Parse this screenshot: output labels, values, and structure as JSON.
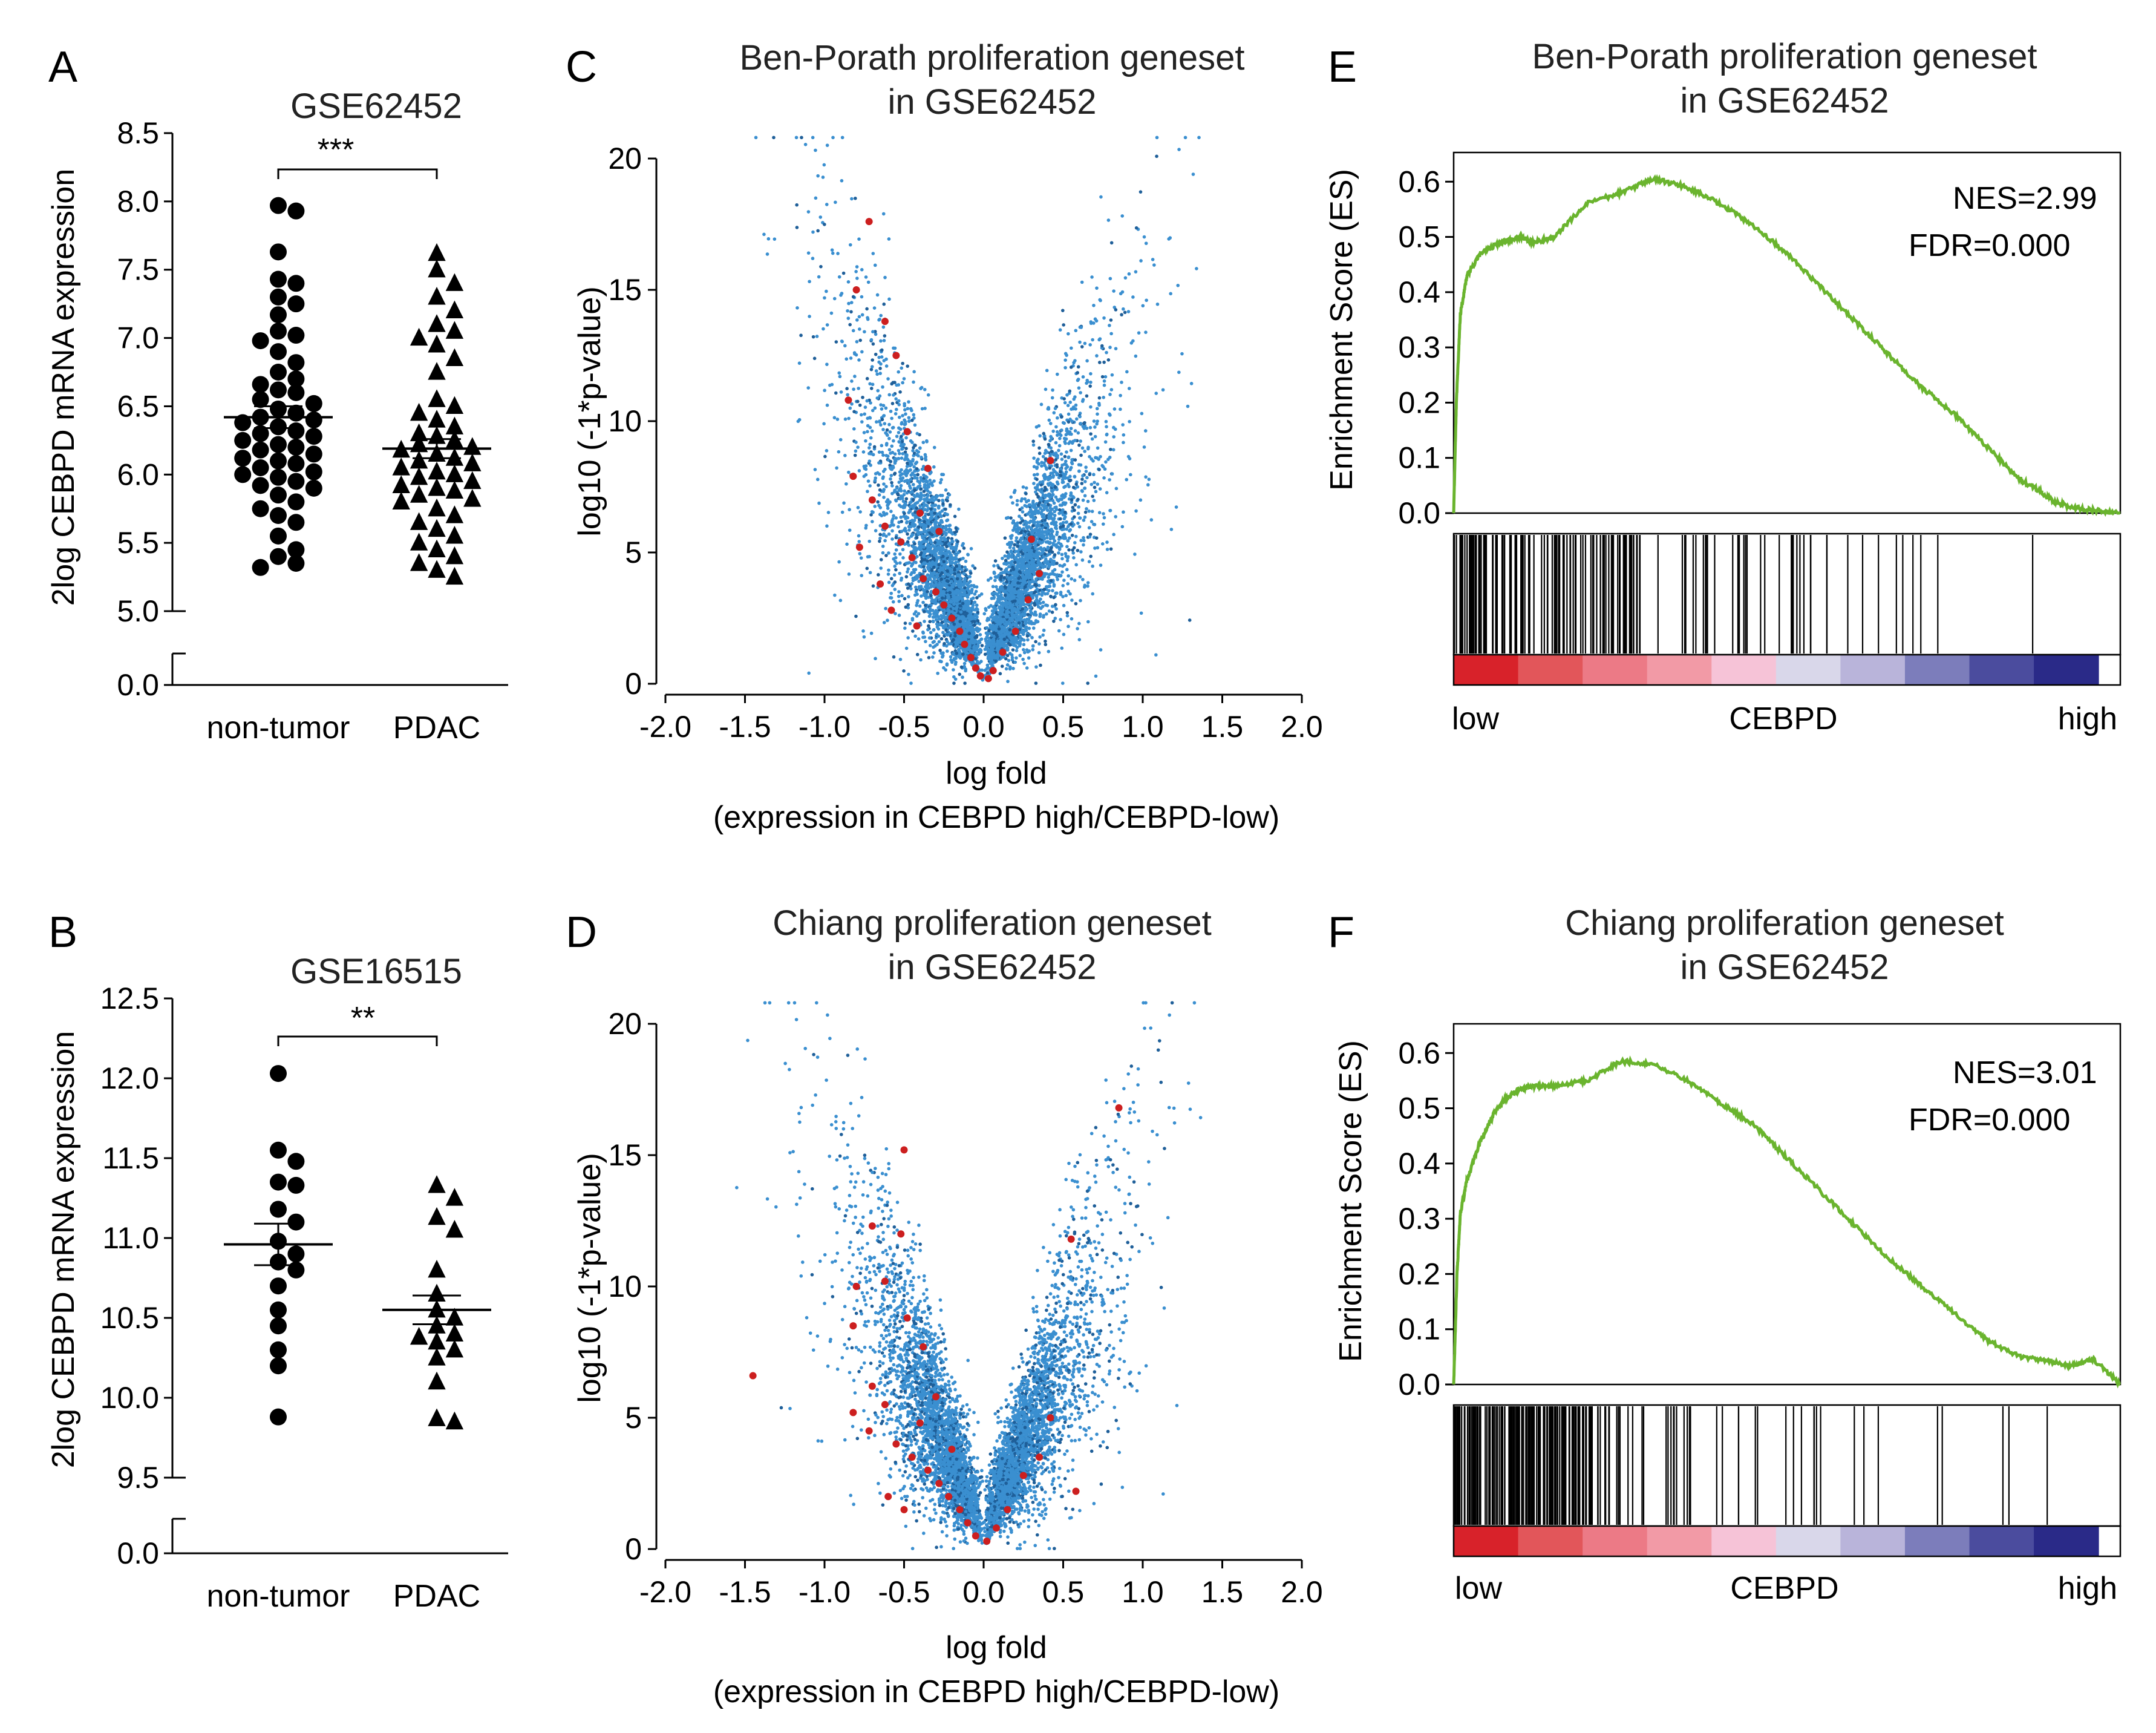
{
  "panels": {
    "A": {
      "letter": "A",
      "title": "GSE62452",
      "ylabel": "2log CEBPD mRNA expression",
      "significance": "***",
      "categories": [
        "non-tumor",
        "PDAC"
      ]
    },
    "B": {
      "letter": "B",
      "title": "GSE16515",
      "ylabel": "2log CEBPD mRNA expression",
      "significance": "**",
      "categories": [
        "non-tumor",
        "PDAC"
      ]
    },
    "C": {
      "letter": "C",
      "title_line1": "Ben-Porath proliferation geneset",
      "title_line2": "in GSE62452",
      "xlabel_line1": "log fold",
      "xlabel_line2": "(expression in CEBPD high/CEBPD-low)",
      "ylabel": "log10 (-1*p-value)"
    },
    "D": {
      "letter": "D",
      "title_line1": "Chiang proliferation geneset",
      "title_line2": "in GSE62452",
      "xlabel_line1": "log fold",
      "xlabel_line2": "(expression in CEBPD high/CEBPD-low)",
      "ylabel": "log10 (-1*p-value)"
    },
    "E": {
      "letter": "E",
      "title_line1": "Ben-Porath proliferation geneset",
      "title_line2": "in GSE62452",
      "ylabel": "Enrichment Score (ES)",
      "nes": "NES=2.99",
      "fdr": "FDR=0.000",
      "low": "low",
      "mid": "CEBPD",
      "high": "high"
    },
    "F": {
      "letter": "F",
      "title_line1": "Chiang proliferation geneset",
      "title_line2": "in GSE62452",
      "ylabel": "Enrichment Score (ES)",
      "nes": "NES=3.01",
      "fdr": "FDR=0.000",
      "low": "low",
      "mid": "CEBPD",
      "high": "high"
    }
  },
  "colors": {
    "volcano_blue": "#3a8fd0",
    "volcano_dark": "#1f5f99",
    "volcano_red": "#cc1f1f",
    "es_line": "#6ab42e",
    "heat": [
      "#d8222a",
      "#e2565a",
      "#ec7a86",
      "#f29aa6",
      "#f6c3d7",
      "#d9d7ea",
      "#b9b4da",
      "#7c7dbb",
      "#4b4c9e",
      "#2a2a88"
    ]
  },
  "chart_data": [
    {
      "panel": "A",
      "type": "scatter",
      "title": "GSE62452",
      "ylabel": "2log CEBPD mRNA expression",
      "categories": [
        "non-tumor",
        "PDAC"
      ],
      "yticks": [
        "0.0",
        "5.0",
        "5.5",
        "6.0",
        "6.5",
        "7.0",
        "7.5",
        "8.0",
        "8.5"
      ],
      "ylim_upper": [
        5.0,
        8.5
      ],
      "axis_break": true,
      "series": [
        {
          "name": "non-tumor",
          "marker": "circle",
          "mean": 6.42,
          "sem": 0.08,
          "values": [
            7.97,
            7.93,
            7.63,
            7.43,
            7.4,
            7.3,
            7.25,
            7.17,
            7.05,
            7.02,
            6.98,
            6.9,
            6.82,
            6.75,
            6.7,
            6.66,
            6.62,
            6.6,
            6.55,
            6.52,
            6.48,
            6.45,
            6.42,
            6.4,
            6.38,
            6.35,
            6.32,
            6.3,
            6.28,
            6.25,
            6.22,
            6.2,
            6.18,
            6.15,
            6.12,
            6.1,
            6.08,
            6.05,
            6.02,
            6.0,
            5.98,
            5.95,
            5.92,
            5.9,
            5.85,
            5.8,
            5.75,
            5.7,
            5.65,
            5.55,
            5.45,
            5.4,
            5.35,
            5.32
          ]
        },
        {
          "name": "PDAC",
          "marker": "triangle",
          "mean": 6.19,
          "sem": 0.07,
          "values": [
            7.62,
            7.5,
            7.4,
            7.3,
            7.2,
            7.1,
            7.05,
            7.0,
            6.95,
            6.85,
            6.75,
            6.55,
            6.5,
            6.45,
            6.4,
            6.35,
            6.3,
            6.28,
            6.25,
            6.22,
            6.2,
            6.18,
            6.15,
            6.12,
            6.1,
            6.08,
            6.05,
            6.02,
            6.0,
            5.98,
            5.95,
            5.92,
            5.9,
            5.88,
            5.85,
            5.82,
            5.8,
            5.75,
            5.7,
            5.65,
            5.6,
            5.55,
            5.5,
            5.45,
            5.4,
            5.35,
            5.3,
            5.25
          ]
        }
      ]
    },
    {
      "panel": "B",
      "type": "scatter",
      "title": "GSE16515",
      "ylabel": "2log CEBPD mRNA expression",
      "categories": [
        "non-tumor",
        "PDAC"
      ],
      "yticks": [
        "0.0",
        "9.5",
        "10.0",
        "10.5",
        "11.0",
        "11.5",
        "12.0",
        "12.5"
      ],
      "ylim_upper": [
        9.5,
        12.5
      ],
      "axis_break": true,
      "series": [
        {
          "name": "non-tumor",
          "marker": "circle",
          "mean": 10.96,
          "sem": 0.13,
          "values": [
            12.03,
            11.55,
            11.48,
            11.35,
            11.33,
            11.18,
            11.1,
            10.98,
            10.9,
            10.85,
            10.8,
            10.7,
            10.55,
            10.45,
            10.3,
            10.2,
            9.88
          ]
        },
        {
          "name": "PDAC",
          "marker": "triangle",
          "mean": 10.55,
          "sem": 0.09,
          "values": [
            11.33,
            11.25,
            11.13,
            11.05,
            10.8,
            10.65,
            10.55,
            10.5,
            10.45,
            10.4,
            10.38,
            10.35,
            10.3,
            10.25,
            10.1,
            9.87,
            9.85
          ]
        }
      ]
    },
    {
      "panel": "C",
      "type": "scatter",
      "title": "Ben-Porath proliferation geneset in GSE62452",
      "xlabel": "log fold (expression in CEBPD high/CEBPD-low)",
      "ylabel": "log10 (-1*p-value)",
      "xlim": [
        -2.0,
        2.0
      ],
      "ylim": [
        0,
        20
      ],
      "xticks": [
        "-2.0",
        "-1.5",
        "-1.0",
        "-0.5",
        "0.0",
        "0.5",
        "1.0",
        "1.5",
        "2.0"
      ],
      "yticks": [
        "0",
        "5",
        "10",
        "15",
        "20"
      ],
      "seed": 11,
      "n_points": 6000,
      "highlighted": [
        [
          -0.72,
          17.6
        ],
        [
          -0.8,
          15.0
        ],
        [
          -0.62,
          13.8
        ],
        [
          -0.85,
          10.8
        ],
        [
          -0.55,
          12.5
        ],
        [
          -0.48,
          9.6
        ],
        [
          -0.82,
          7.9
        ],
        [
          -0.7,
          7.0
        ],
        [
          -0.62,
          6.0
        ],
        [
          -0.78,
          5.2
        ],
        [
          -0.52,
          5.4
        ],
        [
          -0.45,
          4.8
        ],
        [
          -0.38,
          4.0
        ],
        [
          -0.3,
          3.5
        ],
        [
          -0.25,
          3.0
        ],
        [
          -0.2,
          2.5
        ],
        [
          -0.15,
          2.0
        ],
        [
          -0.12,
          1.5
        ],
        [
          -0.08,
          1.0
        ],
        [
          -0.05,
          0.6
        ],
        [
          -0.02,
          0.3
        ],
        [
          0.03,
          0.2
        ],
        [
          0.06,
          0.5
        ],
        [
          0.12,
          1.2
        ],
        [
          0.2,
          2.0
        ],
        [
          0.28,
          3.2
        ],
        [
          0.35,
          4.2
        ],
        [
          0.42,
          8.5
        ],
        [
          0.3,
          5.5
        ],
        [
          -0.35,
          8.2
        ],
        [
          -0.4,
          6.5
        ],
        [
          -0.28,
          5.8
        ],
        [
          -0.65,
          3.8
        ],
        [
          -0.58,
          2.8
        ],
        [
          -0.42,
          2.2
        ]
      ]
    },
    {
      "panel": "D",
      "type": "scatter",
      "title": "Chiang proliferation geneset in GSE62452",
      "xlabel": "log fold (expression in CEBPD high/CEBPD-low)",
      "ylabel": "log10 (-1*p-value)",
      "xlim": [
        -2.0,
        2.0
      ],
      "ylim": [
        0,
        20
      ],
      "xticks": [
        "-2.0",
        "-1.5",
        "-1.0",
        "-0.5",
        "0.0",
        "0.5",
        "1.0",
        "1.5",
        "2.0"
      ],
      "yticks": [
        "0",
        "5",
        "10",
        "15",
        "20"
      ],
      "seed": 23,
      "n_points": 6000,
      "highlighted": [
        [
          -1.45,
          6.6
        ],
        [
          0.85,
          16.8
        ],
        [
          -0.5,
          15.2
        ],
        [
          -0.7,
          12.3
        ],
        [
          -0.52,
          12.0
        ],
        [
          -0.8,
          10.0
        ],
        [
          -0.62,
          10.2
        ],
        [
          -0.82,
          8.5
        ],
        [
          -0.48,
          8.8
        ],
        [
          -0.38,
          7.7
        ],
        [
          -0.7,
          6.2
        ],
        [
          -0.62,
          5.5
        ],
        [
          -0.82,
          5.2
        ],
        [
          -0.72,
          4.5
        ],
        [
          -0.55,
          4.0
        ],
        [
          -0.45,
          3.5
        ],
        [
          -0.35,
          3.0
        ],
        [
          -0.28,
          2.5
        ],
        [
          -0.22,
          2.0
        ],
        [
          -0.15,
          1.5
        ],
        [
          -0.1,
          1.0
        ],
        [
          -0.05,
          0.5
        ],
        [
          0.02,
          0.3
        ],
        [
          0.08,
          0.8
        ],
        [
          0.15,
          1.5
        ],
        [
          0.25,
          2.8
        ],
        [
          0.35,
          3.5
        ],
        [
          0.55,
          11.8
        ],
        [
          0.42,
          5.0
        ],
        [
          0.58,
          2.2
        ],
        [
          -0.3,
          5.8
        ],
        [
          -0.4,
          4.8
        ],
        [
          -0.6,
          2.0
        ],
        [
          -0.5,
          1.5
        ],
        [
          -0.2,
          3.8
        ]
      ]
    },
    {
      "panel": "E",
      "type": "line",
      "title": "Ben-Porath proliferation geneset in GSE62452",
      "ylabel": "Enrichment Score (ES)",
      "ylim": [
        0.0,
        0.62
      ],
      "yticks": [
        "0.0",
        "0.1",
        "0.2",
        "0.3",
        "0.4",
        "0.5",
        "0.6"
      ],
      "rank_fraction": [
        0.0,
        0.004,
        0.01,
        0.02,
        0.04,
        0.07,
        0.1,
        0.12,
        0.15,
        0.2,
        0.25,
        0.3,
        0.35,
        0.4,
        0.45,
        0.5,
        0.55,
        0.6,
        0.65,
        0.7,
        0.75,
        0.8,
        0.85,
        0.88,
        0.9,
        0.93,
        0.96,
        1.0
      ],
      "es": [
        0.0,
        0.2,
        0.36,
        0.43,
        0.47,
        0.49,
        0.5,
        0.49,
        0.5,
        0.56,
        0.58,
        0.605,
        0.59,
        0.56,
        0.52,
        0.47,
        0.41,
        0.35,
        0.29,
        0.23,
        0.18,
        0.12,
        0.06,
        0.04,
        0.02,
        0.01,
        0.005,
        0.0
      ],
      "hits_seed": 31,
      "hits_dense_until": 0.28,
      "hits_sparse_until": 0.93,
      "hits_count": 150
    },
    {
      "panel": "F",
      "type": "line",
      "title": "Chiang proliferation geneset in GSE62452",
      "ylabel": "Enrichment Score (ES)",
      "ylim": [
        0.0,
        0.62
      ],
      "yticks": [
        "0.0",
        "0.1",
        "0.2",
        "0.3",
        "0.4",
        "0.5",
        "0.6"
      ],
      "rank_fraction": [
        0.0,
        0.005,
        0.01,
        0.02,
        0.04,
        0.06,
        0.08,
        0.1,
        0.12,
        0.15,
        0.2,
        0.25,
        0.3,
        0.35,
        0.4,
        0.45,
        0.5,
        0.55,
        0.6,
        0.65,
        0.7,
        0.75,
        0.8,
        0.85,
        0.9,
        0.93,
        0.96,
        1.0
      ],
      "es": [
        0.0,
        0.2,
        0.31,
        0.37,
        0.44,
        0.49,
        0.52,
        0.535,
        0.54,
        0.54,
        0.55,
        0.585,
        0.58,
        0.55,
        0.51,
        0.47,
        0.41,
        0.35,
        0.29,
        0.23,
        0.18,
        0.13,
        0.08,
        0.05,
        0.04,
        0.035,
        0.045,
        0.0
      ],
      "hits_seed": 47,
      "hits_dense_until": 0.22,
      "hits_sparse_until": 0.98,
      "hits_count": 190
    }
  ]
}
